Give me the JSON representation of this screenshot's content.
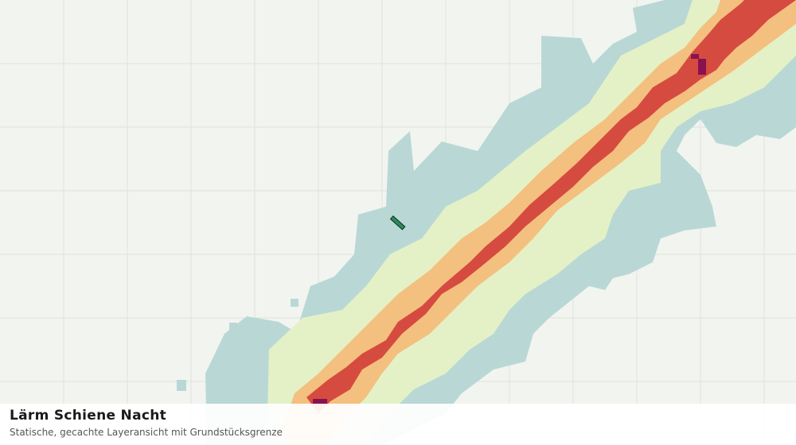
{
  "panel": {
    "title": "Lärm Schiene Nacht",
    "subtitle": "Statische, gecachte Layeransicht mit Grundstücksgrenze"
  }
}
